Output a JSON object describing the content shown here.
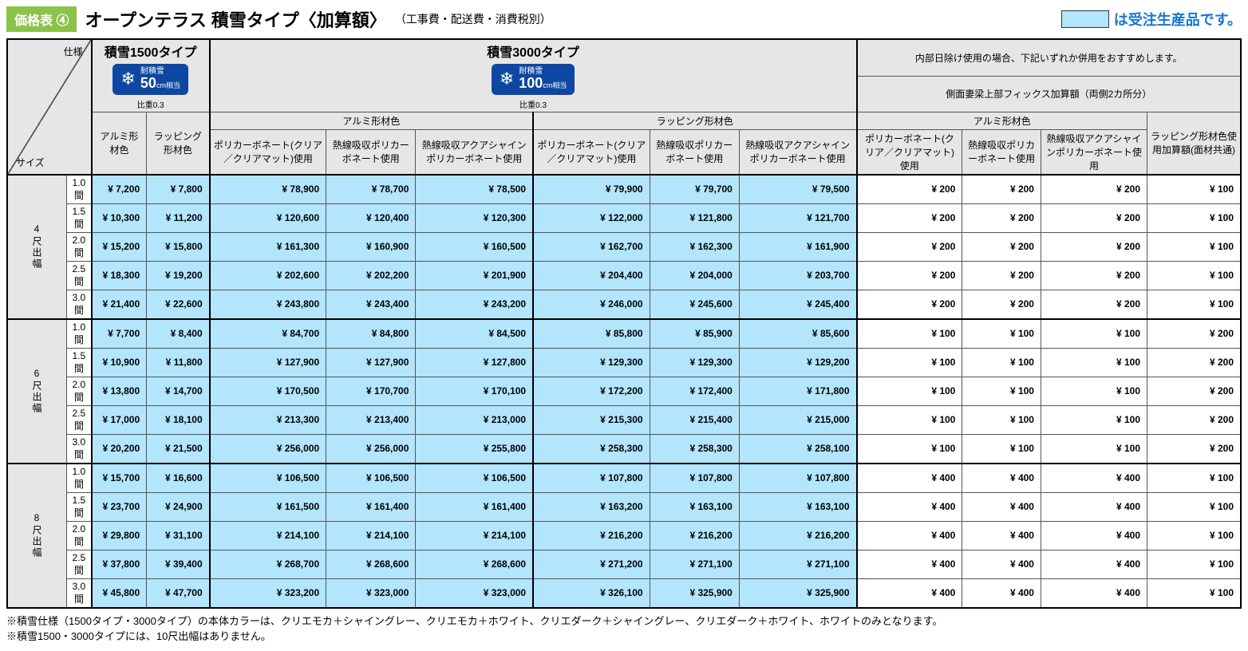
{
  "header": {
    "badge": "価格表 ④",
    "title": "オープンテラス 積雪タイプ〈加算額〉",
    "subtitle": "（工事費・配送費・消費税別）",
    "legend_text": "は受注生産品です。"
  },
  "colhead": {
    "spec": "仕様",
    "size": "サイズ",
    "snow1500": "積雪1500タイプ",
    "snow1500_label": "耐積雪",
    "snow1500_val": "50",
    "snow1500_unit": "cm相当",
    "snow1500_density": "比重0.3",
    "snow3000": "積雪3000タイプ",
    "snow3000_label": "耐積雪",
    "snow3000_val": "100",
    "snow3000_unit": "cm相当",
    "snow3000_density": "比重0.3",
    "shading_note": "内部日除け使用の場合、下記いずれか併用をおすすめします。",
    "side_fix": "側面妻梁上部フィックス加算額（両側2カ所分）",
    "alumi": "アルミ形材色",
    "wrapping": "ラッピング形材色",
    "poly_clear": "ポリカーボネート(クリア／クリアマット)使用",
    "heat_poly": "熱線吸収ポリカーボネート使用",
    "aqua_poly": "熱線吸収アクアシャインポリカーボネート使用",
    "wrap_common": "ラッピング形材色使用加算額(面材共通)"
  },
  "groups": [
    {
      "label": "4尺出幅",
      "rows": [
        {
          "w": "1.0間",
          "v": [
            "¥ 7,200",
            "¥ 7,800",
            "¥ 78,900",
            "¥ 78,700",
            "¥ 78,500",
            "¥ 79,900",
            "¥ 79,700",
            "¥ 79,500",
            "¥ 200",
            "¥ 200",
            "¥ 200",
            "¥ 100"
          ]
        },
        {
          "w": "1.5間",
          "v": [
            "¥ 10,300",
            "¥ 11,200",
            "¥ 120,600",
            "¥ 120,400",
            "¥ 120,300",
            "¥ 122,000",
            "¥ 121,800",
            "¥ 121,700",
            "¥ 200",
            "¥ 200",
            "¥ 200",
            "¥ 100"
          ]
        },
        {
          "w": "2.0間",
          "v": [
            "¥ 15,200",
            "¥ 15,800",
            "¥ 161,300",
            "¥ 160,900",
            "¥ 160,500",
            "¥ 162,700",
            "¥ 162,300",
            "¥ 161,900",
            "¥ 200",
            "¥ 200",
            "¥ 200",
            "¥ 100"
          ]
        },
        {
          "w": "2.5間",
          "v": [
            "¥ 18,300",
            "¥ 19,200",
            "¥ 202,600",
            "¥ 202,200",
            "¥ 201,900",
            "¥ 204,400",
            "¥ 204,000",
            "¥ 203,700",
            "¥ 200",
            "¥ 200",
            "¥ 200",
            "¥ 100"
          ]
        },
        {
          "w": "3.0間",
          "v": [
            "¥ 21,400",
            "¥ 22,600",
            "¥ 243,800",
            "¥ 243,400",
            "¥ 243,200",
            "¥ 246,000",
            "¥ 245,600",
            "¥ 245,400",
            "¥ 200",
            "¥ 200",
            "¥ 200",
            "¥ 100"
          ]
        }
      ]
    },
    {
      "label": "6尺出幅",
      "rows": [
        {
          "w": "1.0間",
          "v": [
            "¥ 7,700",
            "¥ 8,400",
            "¥ 84,700",
            "¥ 84,800",
            "¥ 84,500",
            "¥ 85,800",
            "¥ 85,900",
            "¥ 85,600",
            "¥ 100",
            "¥ 100",
            "¥ 100",
            "¥ 200"
          ]
        },
        {
          "w": "1.5間",
          "v": [
            "¥ 10,900",
            "¥ 11,800",
            "¥ 127,900",
            "¥ 127,900",
            "¥ 127,800",
            "¥ 129,300",
            "¥ 129,300",
            "¥ 129,200",
            "¥ 100",
            "¥ 100",
            "¥ 100",
            "¥ 200"
          ]
        },
        {
          "w": "2.0間",
          "v": [
            "¥ 13,800",
            "¥ 14,700",
            "¥ 170,500",
            "¥ 170,700",
            "¥ 170,100",
            "¥ 172,200",
            "¥ 172,400",
            "¥ 171,800",
            "¥ 100",
            "¥ 100",
            "¥ 100",
            "¥ 200"
          ]
        },
        {
          "w": "2.5間",
          "v": [
            "¥ 17,000",
            "¥ 18,100",
            "¥ 213,300",
            "¥ 213,400",
            "¥ 213,000",
            "¥ 215,300",
            "¥ 215,400",
            "¥ 215,000",
            "¥ 100",
            "¥ 100",
            "¥ 100",
            "¥ 200"
          ]
        },
        {
          "w": "3.0間",
          "v": [
            "¥ 20,200",
            "¥ 21,500",
            "¥ 256,000",
            "¥ 256,000",
            "¥ 255,800",
            "¥ 258,300",
            "¥ 258,300",
            "¥ 258,100",
            "¥ 100",
            "¥ 100",
            "¥ 100",
            "¥ 200"
          ]
        }
      ]
    },
    {
      "label": "8尺出幅",
      "rows": [
        {
          "w": "1.0間",
          "v": [
            "¥ 15,700",
            "¥ 16,600",
            "¥ 106,500",
            "¥ 106,500",
            "¥ 106,500",
            "¥ 107,800",
            "¥ 107,800",
            "¥ 107,800",
            "¥ 400",
            "¥ 400",
            "¥ 400",
            "¥ 100"
          ]
        },
        {
          "w": "1.5間",
          "v": [
            "¥ 23,700",
            "¥ 24,900",
            "¥ 161,500",
            "¥ 161,400",
            "¥ 161,400",
            "¥ 163,200",
            "¥ 163,100",
            "¥ 163,100",
            "¥ 400",
            "¥ 400",
            "¥ 400",
            "¥ 100"
          ]
        },
        {
          "w": "2.0間",
          "v": [
            "¥ 29,800",
            "¥ 31,100",
            "¥ 214,100",
            "¥ 214,100",
            "¥ 214,100",
            "¥ 216,200",
            "¥ 216,200",
            "¥ 216,200",
            "¥ 400",
            "¥ 400",
            "¥ 400",
            "¥ 100"
          ]
        },
        {
          "w": "2.5間",
          "v": [
            "¥ 37,800",
            "¥ 39,400",
            "¥ 268,700",
            "¥ 268,600",
            "¥ 268,600",
            "¥ 271,200",
            "¥ 271,100",
            "¥ 271,100",
            "¥ 400",
            "¥ 400",
            "¥ 400",
            "¥ 100"
          ]
        },
        {
          "w": "3.0間",
          "v": [
            "¥ 45,800",
            "¥ 47,700",
            "¥ 323,200",
            "¥ 323,000",
            "¥ 323,000",
            "¥ 326,100",
            "¥ 325,900",
            "¥ 325,900",
            "¥ 400",
            "¥ 400",
            "¥ 400",
            "¥ 100"
          ]
        }
      ]
    }
  ],
  "highlight_cols": [
    0,
    1,
    2,
    3,
    4,
    5,
    6,
    7
  ],
  "notes": [
    "※積雪仕様（1500タイプ・3000タイプ）の本体カラーは、クリエモカ＋シャイングレー、クリエモカ＋ホワイト、クリエダーク＋シャイングレー、クリエダーク＋ホワイト、ホワイトのみとなります。",
    "※積雪1500・3000タイプには、10尺出幅はありません。"
  ]
}
